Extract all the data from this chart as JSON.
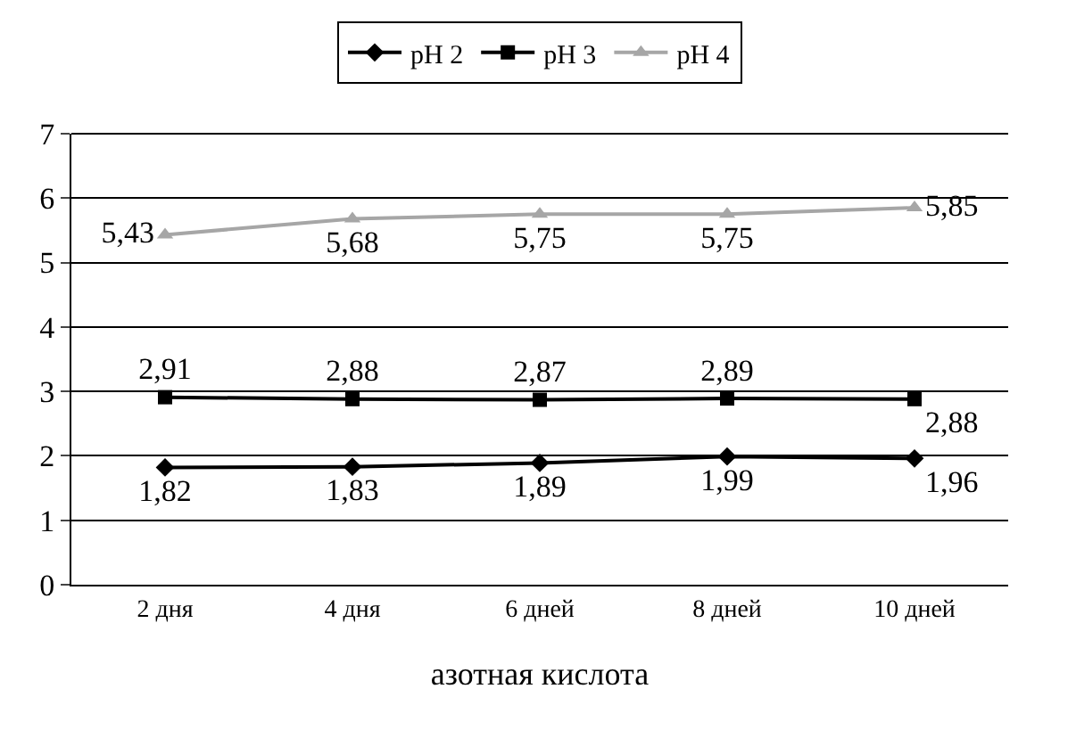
{
  "chart_data": {
    "type": "line",
    "xlabel": "азотная кислота",
    "categories": [
      "2 дня",
      "4 дня",
      "6 дней",
      "8 дней",
      "10 дней"
    ],
    "series": [
      {
        "name": "pH 2",
        "color": "#000000",
        "marker": "diamond",
        "values": [
          1.82,
          1.83,
          1.89,
          1.99,
          1.96
        ],
        "value_labels": [
          "1,82",
          "1,83",
          "1,89",
          "1,99",
          "1,96"
        ]
      },
      {
        "name": "pH 3",
        "color": "#000000",
        "marker": "square",
        "values": [
          2.91,
          2.88,
          2.87,
          2.89,
          2.88
        ],
        "value_labels": [
          "2,91",
          "2,88",
          "2,87",
          "2,89",
          "2,88"
        ]
      },
      {
        "name": "pH 4",
        "color": "#a6a6a6",
        "marker": "triangle",
        "values": [
          5.43,
          5.68,
          5.75,
          5.75,
          5.85
        ],
        "value_labels": [
          "5,43",
          "5,68",
          "5,75",
          "5,75",
          "5,85"
        ]
      }
    ],
    "ylim": [
      0,
      7
    ],
    "yticks": [
      0,
      1,
      2,
      3,
      4,
      5,
      6,
      7
    ],
    "grid": "y",
    "legend": "top"
  }
}
